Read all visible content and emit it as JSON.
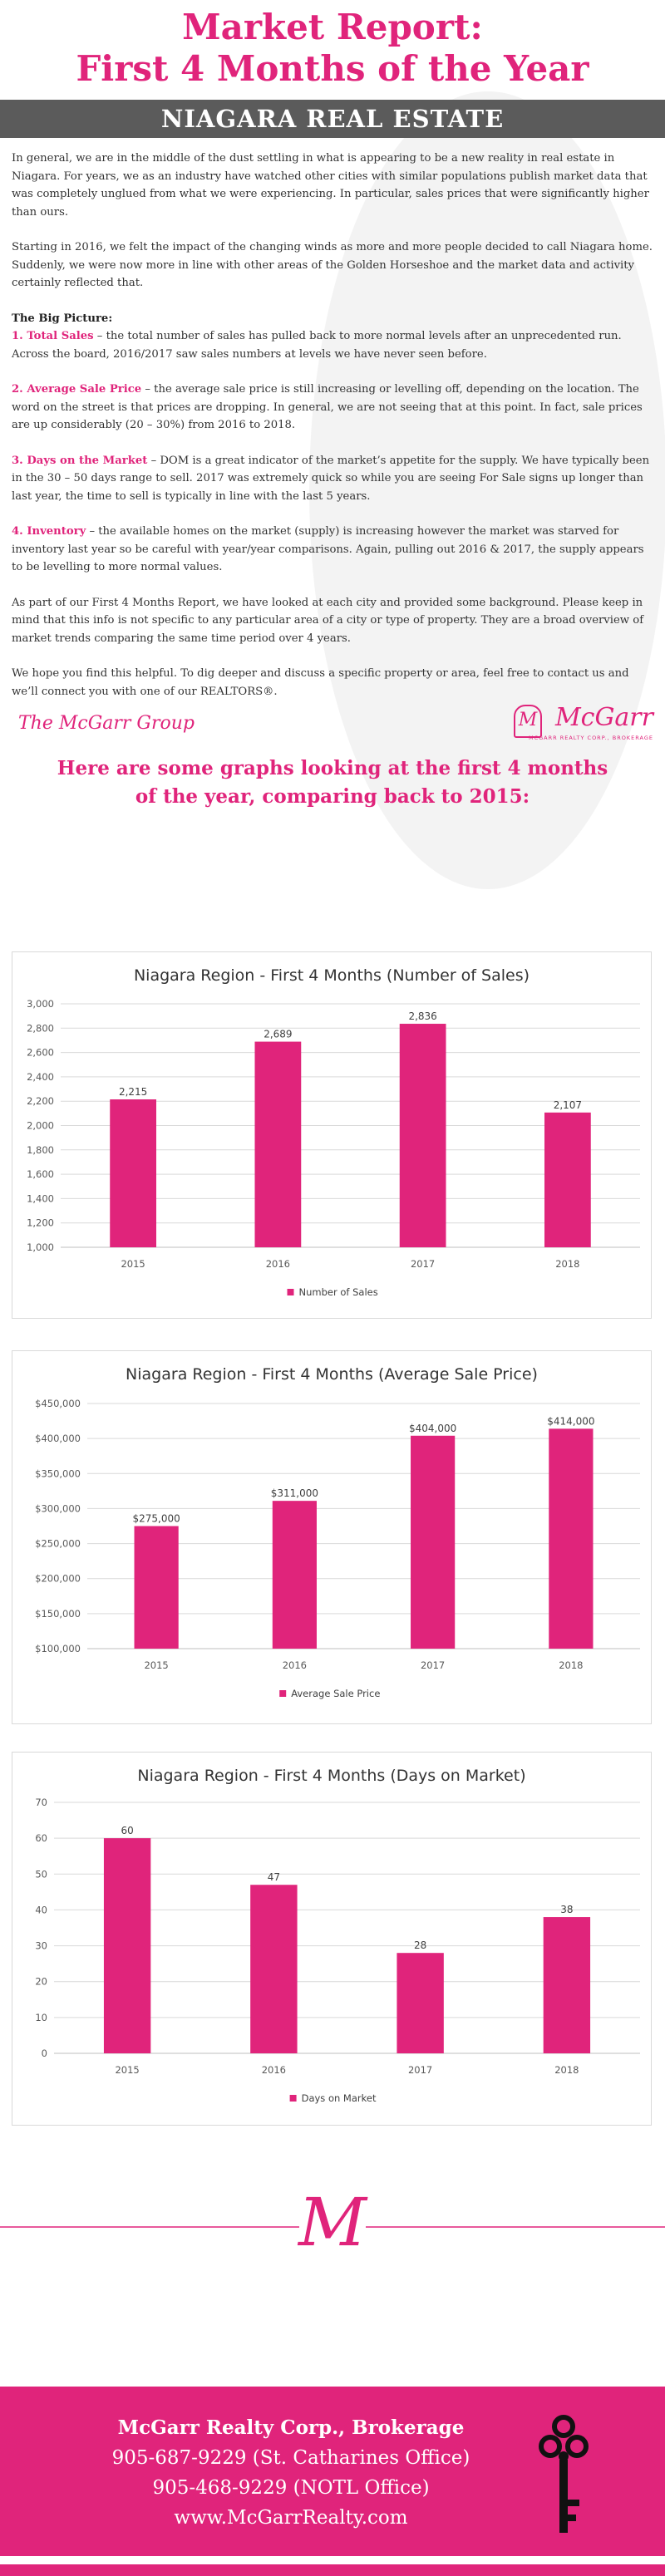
{
  "header": {
    "title_line1": "Market Report:",
    "title_line2": "First 4 Months of the Year",
    "banner": "NIAGARA REAL ESTATE"
  },
  "intro": {
    "p1": "In general, we are in the middle of the dust settling in what is appearing to be a new reality in real estate in Niagara. For years, we as an industry have watched other cities with similar populations publish market data that was completely unglued from what we were experiencing. In particular, sales prices that were significantly higher than ours.",
    "p2": "Starting in 2016, we felt the impact of the changing winds as more and more people decided to call Niagara home. Suddenly, we were now more in line with other areas of the Golden Horseshoe and the market data and activity certainly reflected that.",
    "big_picture": "The Big Picture:",
    "items": [
      {
        "label": "1. Total Sales",
        "text": " – the total number of sales has pulled back to more normal levels after an unprecedented run. Across the board, 2016/2017 saw sales numbers at levels we have never seen before."
      },
      {
        "label": "2. Average Sale Price",
        "text": " – the average sale price is still increasing or levelling off, depending on the location. The word on the street is that prices are dropping. In general, we are not seeing that at this point. In fact, sale prices are up considerably (20 – 30%) from 2016 to 2018."
      },
      {
        "label": "3. Days on the Market",
        "text": " – DOM is a great indicator of the market’s appetite for the supply. We have typically been in the 30 – 50 days range to sell. 2017 was extremely quick so while you are seeing For Sale signs up longer than last year, the time to sell is typically in line with the last 5 years."
      },
      {
        "label": "4. Inventory",
        "text": " – the available homes on the market (supply) is increasing however the market was starved for inventory last year so be careful with year/year comparisons. Again, pulling out 2016 & 2017, the supply appears to be levelling to more normal values."
      }
    ],
    "p3": "As part of our First 4 Months Report, we have looked at each city and provided some background. Please keep in mind that this info is not specific to any particular area of a city or type of property. They are a broad overview of market trends comparing the same time period over 4 years.",
    "p4": "We hope you find this helpful. To dig deeper and discuss a specific property or area, feel free to contact us and we’ll connect you with one of our REALTORS®."
  },
  "logos": {
    "group": "The McGarr Group",
    "brand": "McGarr",
    "brand_sub": "MCGARR REALTY CORP., BROKERAGE",
    "brand_mark": "M",
    "divider_mark": "M"
  },
  "subhead": {
    "line1": "Here are some graphs looking at the first 4 months",
    "line2": "of the year, comparing back to 2015:"
  },
  "colors": {
    "accent": "#e0247b",
    "banner": "#5b5b5b"
  },
  "chart_data": [
    {
      "type": "bar",
      "title": "Niagara Region - First 4 Months (Number of Sales)",
      "categories": [
        "2015",
        "2016",
        "2017",
        "2018"
      ],
      "series": [
        {
          "name": "Number of Sales",
          "values": [
            2215,
            2689,
            2836,
            2107
          ]
        }
      ],
      "data_labels": [
        "2,215",
        "2,689",
        "2,836",
        "2,107"
      ],
      "ylim": [
        1000,
        3000
      ],
      "yticks": [
        "1,000",
        "1,200",
        "1,400",
        "1,600",
        "1,800",
        "2,000",
        "2,200",
        "2,400",
        "2,600",
        "2,800",
        "3,000"
      ],
      "grid": true,
      "legend": "bottom"
    },
    {
      "type": "bar",
      "title": "Niagara Region - First 4 Months (Average Sale Price)",
      "categories": [
        "2015",
        "2016",
        "2017",
        "2018"
      ],
      "series": [
        {
          "name": "Average Sale Price",
          "values": [
            275000,
            311000,
            404000,
            414000
          ]
        }
      ],
      "data_labels": [
        "$275,000",
        "$311,000",
        "$404,000",
        "$414,000"
      ],
      "ylim": [
        100000,
        450000
      ],
      "yticks": [
        "$100,000",
        "$150,000",
        "$200,000",
        "$250,000",
        "$300,000",
        "$350,000",
        "$400,000",
        "$450,000"
      ],
      "grid": true,
      "legend": "bottom"
    },
    {
      "type": "bar",
      "title": "Niagara Region - First 4 Months (Days on Market)",
      "categories": [
        "2015",
        "2016",
        "2017",
        "2018"
      ],
      "series": [
        {
          "name": "Days on Market",
          "values": [
            60,
            47,
            28,
            38
          ]
        }
      ],
      "data_labels": [
        "60",
        "47",
        "28",
        "38"
      ],
      "ylim": [
        0,
        70
      ],
      "yticks": [
        "0",
        "10",
        "20",
        "30",
        "40",
        "50",
        "60",
        "70"
      ],
      "grid": true,
      "legend": "bottom"
    }
  ],
  "footer": {
    "company": "McGarr Realty Corp., Brokerage",
    "phone1": "905-687-9229 (St. Catharines Office)",
    "phone2": "905-468-9229 (NOTL Office)",
    "website": "www.McGarrRealty.com"
  }
}
